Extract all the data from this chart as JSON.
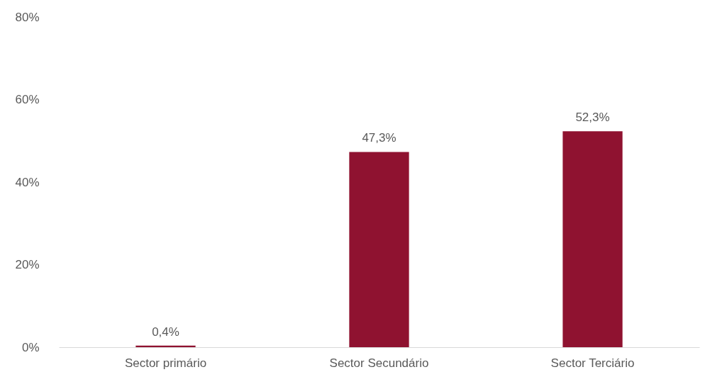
{
  "chart_data": {
    "type": "bar",
    "categories": [
      "Sector primário",
      "Sector Secundário",
      "Sector Terciário"
    ],
    "values": [
      0.4,
      47.3,
      52.3
    ],
    "value_labels": [
      "0,4%",
      "47,3%",
      "52,3%"
    ],
    "color": "#8f1230",
    "ylim": [
      0,
      80
    ],
    "yticks": [
      {
        "value": 0,
        "label": "0%"
      },
      {
        "value": 20,
        "label": "20%"
      },
      {
        "value": 40,
        "label": "40%"
      },
      {
        "value": 60,
        "label": "60%"
      },
      {
        "value": 80,
        "label": "80%"
      }
    ],
    "grid": false
  }
}
